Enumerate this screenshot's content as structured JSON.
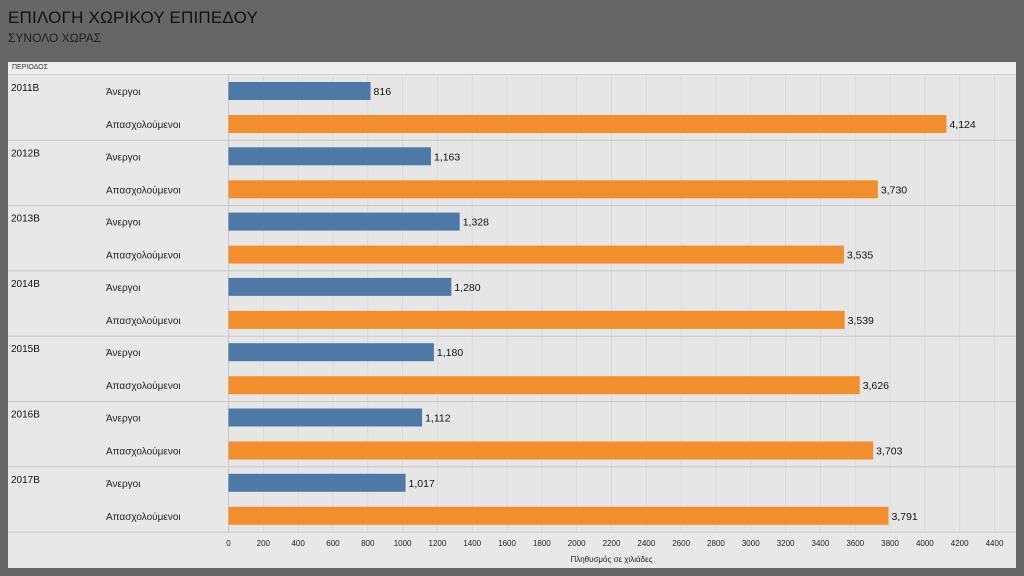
{
  "page": {
    "title": "ΕΠΙΛΟΓΗ ΧΩΡΙΚΟΥ ΕΠΙΠΕΔΟΥ",
    "subtitle": "ΣΥΝΟΛΟ ΧΩΡΑΣ",
    "period_header": "ΠΕΡΙΟΔΟΣ"
  },
  "chart_data": {
    "type": "bar",
    "orientation": "horizontal",
    "groups": [
      "2011B",
      "2012B",
      "2013B",
      "2014B",
      "2015B",
      "2016B",
      "2017B"
    ],
    "series": [
      {
        "name": "Άνεργοι",
        "color": "#4e79a7",
        "values": [
          816,
          1163,
          1328,
          1280,
          1180,
          1112,
          1017
        ]
      },
      {
        "name": "Απασχολούμενοι",
        "color": "#f28e2b",
        "values": [
          4124,
          3730,
          3535,
          3539,
          3626,
          3703,
          3791
        ]
      }
    ],
    "value_labels": {
      "Άνεργοι": [
        "816",
        "1,163",
        "1,328",
        "1,280",
        "1,180",
        "1,112",
        "1,017"
      ],
      "Απασχολούμενοι": [
        "4,124",
        "3,730",
        "3,535",
        "3,539",
        "3,626",
        "3,703",
        "3,791"
      ]
    },
    "xlabel": "Πληθυσμός σε χιλιάδες",
    "xlim": [
      0,
      4400
    ],
    "xticks": [
      0,
      200,
      400,
      600,
      800,
      1000,
      1200,
      1400,
      1600,
      1800,
      2000,
      2200,
      2400,
      2600,
      2800,
      3000,
      3200,
      3400,
      3600,
      3800,
      4000,
      4200,
      4400
    ],
    "grid": true
  }
}
